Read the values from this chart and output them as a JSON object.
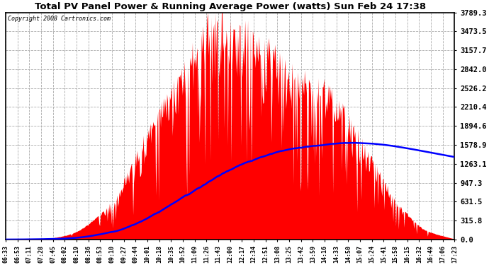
{
  "title": "Total PV Panel Power & Running Average Power (watts) Sun Feb 24 17:38",
  "copyright": "Copyright 2008 Cartronics.com",
  "ytick_labels": [
    "0.0",
    "315.8",
    "631.5",
    "947.3",
    "1263.1",
    "1578.9",
    "1894.6",
    "2210.4",
    "2526.2",
    "2842.0",
    "3157.7",
    "3473.5",
    "3789.3"
  ],
  "ytick_values": [
    0.0,
    315.8,
    631.5,
    947.3,
    1263.1,
    1578.9,
    1894.6,
    2210.4,
    2526.2,
    2842.0,
    3157.7,
    3473.5,
    3789.3
  ],
  "ymax": 3789.3,
  "ymin": 0.0,
  "bg_color": "#ffffff",
  "fill_color": "#ff0000",
  "avg_line_color": "#0000ff",
  "title_color": "#000000",
  "copyright_color": "#000000",
  "xtick_labels": [
    "06:33",
    "06:53",
    "07:11",
    "07:28",
    "07:45",
    "08:02",
    "08:19",
    "08:36",
    "08:53",
    "09:10",
    "09:27",
    "09:44",
    "10:01",
    "10:18",
    "10:35",
    "10:52",
    "11:09",
    "11:26",
    "11:43",
    "12:00",
    "12:17",
    "12:34",
    "12:51",
    "13:08",
    "13:25",
    "13:42",
    "13:59",
    "14:16",
    "14:33",
    "14:50",
    "15:07",
    "15:24",
    "15:41",
    "15:58",
    "16:15",
    "16:32",
    "16:49",
    "17:06",
    "17:23"
  ]
}
